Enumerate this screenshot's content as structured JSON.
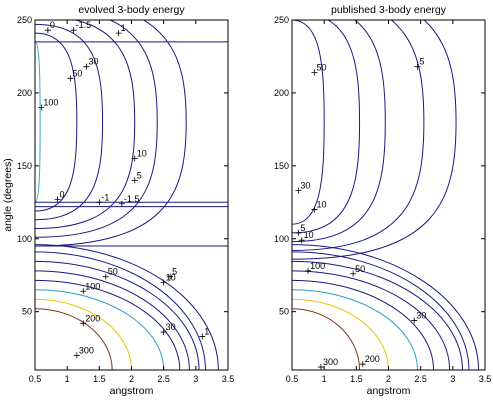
{
  "chart_data": [
    {
      "type": "contour",
      "title": "evolved 3-body energy",
      "xlabel": "angstrom",
      "ylabel": "angle (degrees)",
      "xlim": [
        0.5,
        3.5
      ],
      "ylim": [
        10,
        250
      ],
      "xticks": [
        "0.5",
        "1",
        "1.5",
        "2",
        "2.5",
        "3",
        "3.5"
      ],
      "yticks": [
        "50",
        "100",
        "150",
        "200",
        "250"
      ],
      "bands": [
        {
          "lower_angle": 95,
          "upper_angle": 122
        },
        {
          "lower_angle": 125,
          "upper_angle": 235
        }
      ],
      "upper_region_contours": [
        {
          "level": 100,
          "color": "#3aa7c8",
          "r_center": 0.58
        },
        {
          "level": 50,
          "color": "#1a1a80",
          "r_center": 1.15
        },
        {
          "level": 30,
          "color": "#1a1a80",
          "r_center": 1.55
        },
        {
          "level": 10,
          "color": "#1a1a80",
          "r_center": 2.05
        },
        {
          "level": 5,
          "color": "#1a1a80",
          "r_center": 2.4
        },
        {
          "level": 1,
          "color": "#1a1a80",
          "r_center": 2.85
        }
      ],
      "lower_region_contours": [
        {
          "level": 300,
          "color": "#7a3522",
          "r_at_axis": 1.7
        },
        {
          "level": 200,
          "color": "#e6c800",
          "r_at_axis": 2.0
        },
        {
          "level": 100,
          "color": "#2a9dc0",
          "r_at_axis": 2.5
        },
        {
          "level": 50,
          "color": "#1a1a80",
          "r_at_axis": 2.75
        },
        {
          "level": 30,
          "color": "#1a1a80",
          "r_at_axis": 2.9
        },
        {
          "level": 10,
          "color": "#1a1a80",
          "r_at_axis": 3.05
        },
        {
          "level": 5,
          "color": "#1a1a80",
          "r_at_axis": 3.15
        },
        {
          "level": 1,
          "color": "#1a1a80",
          "r_at_axis": 3.35
        }
      ],
      "annotations": [
        {
          "text": "0",
          "x": 0.7,
          "y": 243
        },
        {
          "text": "-1.5",
          "x": 1.1,
          "y": 243
        },
        {
          "text": "1",
          "x": 1.8,
          "y": 241
        },
        {
          "text": "30",
          "x": 1.3,
          "y": 218
        },
        {
          "text": "50",
          "x": 1.05,
          "y": 210
        },
        {
          "text": "100",
          "x": 0.6,
          "y": 190
        },
        {
          "text": "10",
          "x": 2.05,
          "y": 155
        },
        {
          "text": "5",
          "x": 2.05,
          "y": 140
        },
        {
          "text": "0",
          "x": 0.85,
          "y": 127
        },
        {
          "text": "-1",
          "x": 1.5,
          "y": 125
        },
        {
          "text": "-1.5",
          "x": 1.85,
          "y": 124
        },
        {
          "text": "5",
          "x": 2.6,
          "y": 74
        },
        {
          "text": "10",
          "x": 2.5,
          "y": 70
        },
        {
          "text": "50",
          "x": 1.6,
          "y": 74
        },
        {
          "text": "100",
          "x": 1.25,
          "y": 64
        },
        {
          "text": "200",
          "x": 1.25,
          "y": 42
        },
        {
          "text": "30",
          "x": 2.5,
          "y": 36
        },
        {
          "text": "1",
          "x": 3.1,
          "y": 33
        },
        {
          "text": "300",
          "x": 1.15,
          "y": 20
        }
      ]
    },
    {
      "type": "contour",
      "title": "published 3-body energy",
      "xlabel": "angstrom",
      "ylabel": "",
      "xlim": [
        0.5,
        3.5
      ],
      "ylim": [
        10,
        250
      ],
      "xticks": [
        "0.5",
        "1",
        "1.5",
        "2",
        "2.5",
        "3",
        "3.5"
      ],
      "yticks": [
        "50",
        "100",
        "150",
        "200",
        "250"
      ],
      "upper_region_contours": [
        {
          "level": 50,
          "color": "#1a1a80",
          "r_center": 1.0
        },
        {
          "level": 30,
          "color": "#1a1a80",
          "r_center": 1.55
        },
        {
          "level": 10,
          "color": "#1a1a80",
          "r_center": 1.95
        },
        {
          "level": 5,
          "color": "#1a1a80",
          "r_center": 2.55
        },
        {
          "level": 1,
          "color": "#1a1a80",
          "r_center": 3.05
        }
      ],
      "lower_region_contours": [
        {
          "level": 300,
          "color": "#7a3522",
          "r_at_axis": 1.55
        },
        {
          "level": 200,
          "color": "#e6c800",
          "r_at_axis": 2.0
        },
        {
          "level": 100,
          "color": "#2a9dc0",
          "r_at_axis": 2.45
        },
        {
          "level": 50,
          "color": "#1a1a80",
          "r_at_axis": 2.7
        },
        {
          "level": 30,
          "color": "#1a1a80",
          "r_at_axis": 2.95
        },
        {
          "level": 10,
          "color": "#1a1a80",
          "r_at_axis": 3.15
        },
        {
          "level": 5,
          "color": "#1a1a80",
          "r_at_axis": 3.25
        },
        {
          "level": 1,
          "color": "#1a1a80",
          "r_at_axis": 3.4
        }
      ],
      "annotations": [
        {
          "text": "5",
          "x": 2.45,
          "y": 218
        },
        {
          "text": "50",
          "x": 0.85,
          "y": 214
        },
        {
          "text": "30",
          "x": 0.6,
          "y": 133
        },
        {
          "text": "10",
          "x": 0.85,
          "y": 120
        },
        {
          "text": "5",
          "x": 0.6,
          "y": 104
        },
        {
          "text": "10",
          "x": 0.65,
          "y": 99
        },
        {
          "text": "100",
          "x": 0.75,
          "y": 78
        },
        {
          "text": "50",
          "x": 1.45,
          "y": 76
        },
        {
          "text": "30",
          "x": 2.4,
          "y": 44
        },
        {
          "text": "300",
          "x": 0.95,
          "y": 12
        },
        {
          "text": "200",
          "x": 1.6,
          "y": 14
        }
      ]
    }
  ],
  "legend": null
}
